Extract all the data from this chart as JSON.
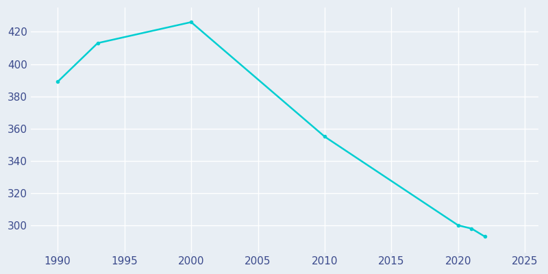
{
  "years": [
    1990,
    1993,
    2000,
    2010,
    2020,
    2021,
    2022
  ],
  "population": [
    389,
    413,
    426,
    355,
    300,
    298,
    293
  ],
  "line_color": "#00CED1",
  "line_width": 1.8,
  "marker": "o",
  "marker_size": 3,
  "bg_color": "#E8EEF4",
  "grid_color": "#FFFFFF",
  "xlim": [
    1988,
    2026
  ],
  "ylim": [
    283,
    435
  ],
  "xticks": [
    1990,
    1995,
    2000,
    2005,
    2010,
    2015,
    2020,
    2025
  ],
  "yticks": [
    300,
    320,
    340,
    360,
    380,
    400,
    420
  ],
  "tick_label_color": "#3B4A8C",
  "tick_fontsize": 11,
  "figure_bg_color": "#E8EEF4"
}
